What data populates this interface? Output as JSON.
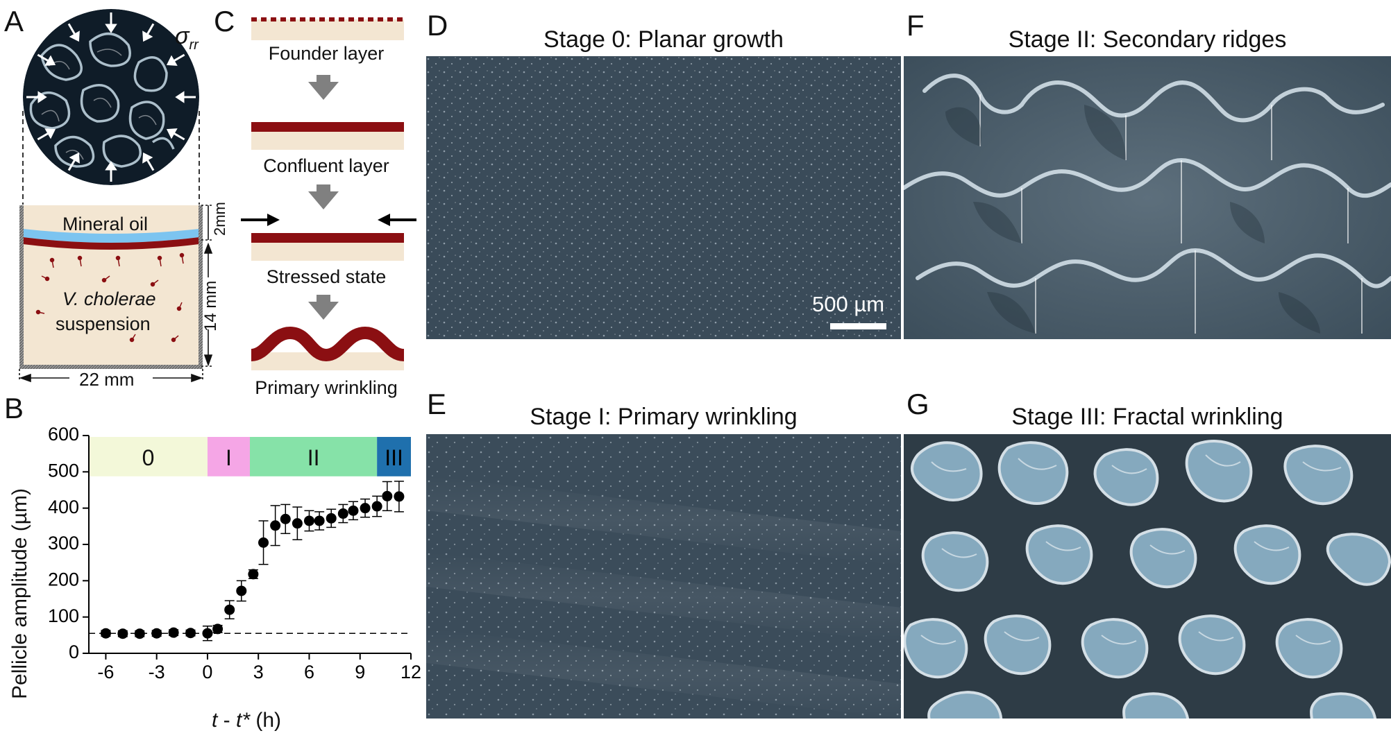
{
  "panels": {
    "A": {
      "label": "A",
      "sigma": "σ",
      "sigma_sub": "rr",
      "oil": "Mineral oil",
      "species": "V. cholerae",
      "suspension": "suspension",
      "dim_top": "2mm",
      "dim_right": "14 mm",
      "dim_bottom": "22 mm"
    },
    "B": {
      "label": "B"
    },
    "C": {
      "label": "C",
      "steps": [
        "Founder layer",
        "Confluent layer",
        "Stressed state",
        "Primary wrinkling"
      ]
    },
    "D": {
      "label": "D",
      "title": "Stage 0: Planar growth",
      "scalebar": "500 µm"
    },
    "E": {
      "label": "E",
      "title": "Stage I: Primary wrinkling"
    },
    "F": {
      "label": "F",
      "title": "Stage II: Secondary ridges"
    },
    "G": {
      "label": "G",
      "title": "Stage III: Fractal wrinkling"
    }
  },
  "colors": {
    "stage0": "#f3f8d9",
    "stage1": "#f5a6e6",
    "stage2": "#86e2a8",
    "stage3": "#1f70ad",
    "pellicle": "#8b0f12",
    "medium": "#f3e6d2",
    "oil": "#7cc4f0"
  },
  "chart_data": {
    "type": "scatter",
    "xlabel_t": "t",
    "xlabel_mid": " - ",
    "xlabel_tstar": "t*",
    "xlabel_unit": " (h)",
    "ylabel": "Pellicle amplitude (µm)",
    "xlim": [
      -7,
      12
    ],
    "ylim": [
      0,
      600
    ],
    "xticks": [
      -6,
      -3,
      0,
      3,
      6,
      9,
      12
    ],
    "yticks": [
      0,
      100,
      200,
      300,
      400,
      500,
      600
    ],
    "baseline": 55,
    "stages": [
      {
        "label": "0",
        "from": -7,
        "to": 0
      },
      {
        "label": "I",
        "from": 0,
        "to": 2.5
      },
      {
        "label": "II",
        "from": 2.5,
        "to": 10
      },
      {
        "label": "III",
        "from": 10,
        "to": 12
      }
    ],
    "x": [
      -6,
      -5,
      -4,
      -3,
      -2,
      -1,
      0,
      0.6,
      1.3,
      2,
      2.7,
      3.3,
      4,
      4.6,
      5.3,
      6,
      6.6,
      7.3,
      8,
      8.6,
      9.3,
      10,
      10.6,
      11.3
    ],
    "y": [
      55,
      54,
      54,
      55,
      57,
      56,
      55,
      67,
      120,
      172,
      218,
      305,
      352,
      370,
      358,
      365,
      365,
      372,
      385,
      393,
      400,
      405,
      433,
      432
    ],
    "err": [
      8,
      8,
      8,
      8,
      8,
      8,
      20,
      10,
      25,
      28,
      12,
      60,
      55,
      40,
      45,
      28,
      25,
      25,
      25,
      25,
      25,
      28,
      40,
      42
    ]
  }
}
